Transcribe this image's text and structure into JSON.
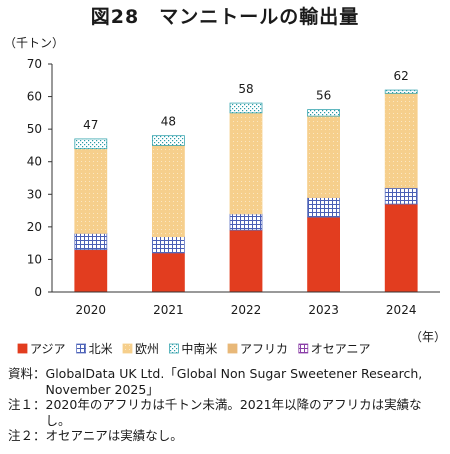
{
  "figure_title": "図28　マンニトールの輸出量",
  "chart_data": {
    "type": "bar",
    "stacked": true,
    "categories": [
      "2020",
      "2021",
      "2022",
      "2023",
      "2024"
    ],
    "series": [
      {
        "name": "アジア",
        "color": "#e23d1f",
        "pattern": "solid",
        "values": [
          13,
          12,
          19,
          23,
          27
        ]
      },
      {
        "name": "北米",
        "color": "#5a6fc0",
        "pattern": "grid",
        "values": [
          5,
          5,
          5,
          6,
          5
        ]
      },
      {
        "name": "欧州",
        "color": "#f6cf8c",
        "pattern": "dots",
        "values": [
          26,
          28,
          31,
          25,
          29
        ]
      },
      {
        "name": "中南米",
        "color": "#3aa6b0",
        "pattern": "checker",
        "values": [
          3,
          3,
          3,
          2,
          1
        ]
      },
      {
        "name": "アフリカ",
        "color": "#e8b878",
        "pattern": "solid",
        "values": [
          0,
          0,
          0,
          0,
          0
        ]
      },
      {
        "name": "オセアニア",
        "color": "#8b3fa8",
        "pattern": "grid",
        "values": [
          0,
          0,
          0,
          0,
          0
        ]
      }
    ],
    "totals": [
      "47",
      "48",
      "58",
      "56",
      "62"
    ],
    "ylabel": "（千トン）",
    "xlabel": "（年）",
    "ylim": [
      0,
      70
    ],
    "yticks": [
      0,
      10,
      20,
      30,
      40,
      50,
      60,
      70
    ],
    "grid": false,
    "legend_position": "bottom"
  },
  "notes": [
    {
      "label": "資料：",
      "text": "GlobalData UK Ltd.「Global Non Sugar Sweetener Research, November 2025」"
    },
    {
      "label": "注１：",
      "text": "2020年のアフリカは千トン未満。2021年以降のアフリカは実績なし。"
    },
    {
      "label": "注２：",
      "text": "オセアニアは実績なし。"
    }
  ]
}
